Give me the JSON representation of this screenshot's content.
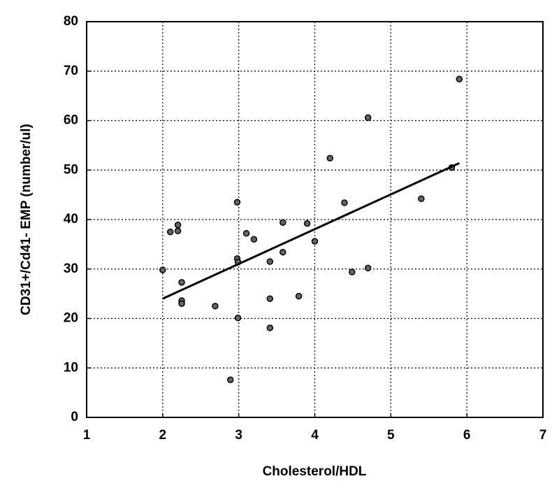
{
  "chart_data": {
    "type": "scatter",
    "x_label": "Cholesterol/HDL",
    "y_label": "CD31+/Cd41- EMP (number/ul)",
    "x": [
      2.0,
      2.1,
      2.2,
      2.2,
      2.25,
      2.25,
      2.25,
      2.69,
      2.89,
      2.98,
      2.98,
      2.99,
      2.99,
      3.1,
      3.2,
      3.41,
      3.41,
      3.41,
      3.58,
      3.58,
      3.79,
      3.9,
      4.0,
      4.2,
      4.39,
      4.49,
      4.7,
      4.7,
      5.4,
      5.9,
      5.8
    ],
    "y": [
      29.8,
      37.5,
      38.9,
      37.7,
      27.3,
      23.6,
      23.0,
      22.5,
      7.6,
      43.5,
      32.1,
      31.4,
      20.1,
      37.2,
      36.0,
      31.5,
      24.0,
      18.1,
      39.4,
      33.4,
      24.5,
      39.2,
      35.6,
      52.4,
      43.4,
      29.4,
      60.6,
      30.2,
      44.2,
      68.4,
      50.5
    ],
    "fit_x": [
      2.0,
      5.9
    ],
    "fit_y": [
      24.0,
      51.4
    ],
    "color": "#000000",
    "xlim": [
      1,
      7
    ],
    "xticks": [
      1,
      2,
      3,
      4,
      5,
      6,
      7
    ],
    "ylim": [
      0,
      80
    ],
    "yticks": [
      0,
      10,
      20,
      30,
      40,
      50,
      60,
      70,
      80
    ],
    "grid": true
  }
}
